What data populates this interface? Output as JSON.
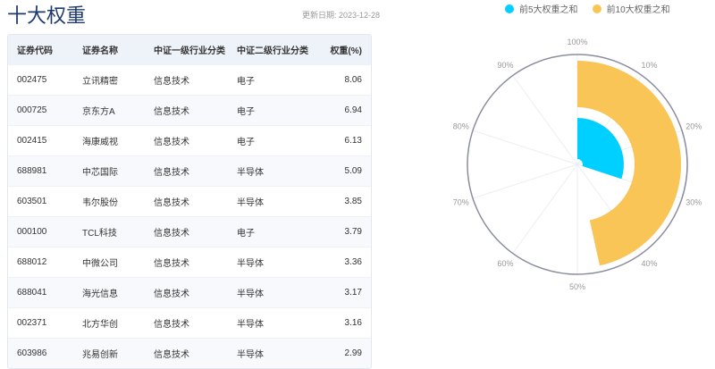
{
  "title": "十大权重",
  "update": "更新日期: 2023-12-28",
  "table": {
    "headers": [
      "证券代码",
      "证券名称",
      "中证一级行业分类",
      "中证二级行业分类",
      "权重(%)"
    ],
    "rows": [
      [
        "002475",
        "立讯精密",
        "信息技术",
        "电子",
        "8.06"
      ],
      [
        "000725",
        "京东方A",
        "信息技术",
        "电子",
        "6.94"
      ],
      [
        "002415",
        "海康威视",
        "信息技术",
        "电子",
        "6.13"
      ],
      [
        "688981",
        "中芯国际",
        "信息技术",
        "半导体",
        "5.09"
      ],
      [
        "603501",
        "韦尔股份",
        "信息技术",
        "半导体",
        "3.85"
      ],
      [
        "000100",
        "TCL科技",
        "信息技术",
        "电子",
        "3.79"
      ],
      [
        "688012",
        "中微公司",
        "信息技术",
        "半导体",
        "3.36"
      ],
      [
        "688041",
        "海光信息",
        "信息技术",
        "半导体",
        "3.17"
      ],
      [
        "002371",
        "北方华创",
        "信息技术",
        "半导体",
        "3.16"
      ],
      [
        "603986",
        "兆易创新",
        "信息技术",
        "半导体",
        "2.99"
      ]
    ]
  },
  "chart_data": {
    "type": "polar-bar",
    "angle_axis": {
      "min": 0,
      "max": 100,
      "ticks": [
        "100%",
        "10%",
        "20%",
        "30%",
        "40%",
        "50%",
        "60%",
        "70%",
        "80%",
        "90%"
      ]
    },
    "series": [
      {
        "name": "前5大权重之和",
        "value": 30.07,
        "color": "#00d0ff"
      },
      {
        "name": "前10大权重之和",
        "value": 46.54,
        "color": "#f9c557"
      }
    ],
    "legend": "top"
  }
}
